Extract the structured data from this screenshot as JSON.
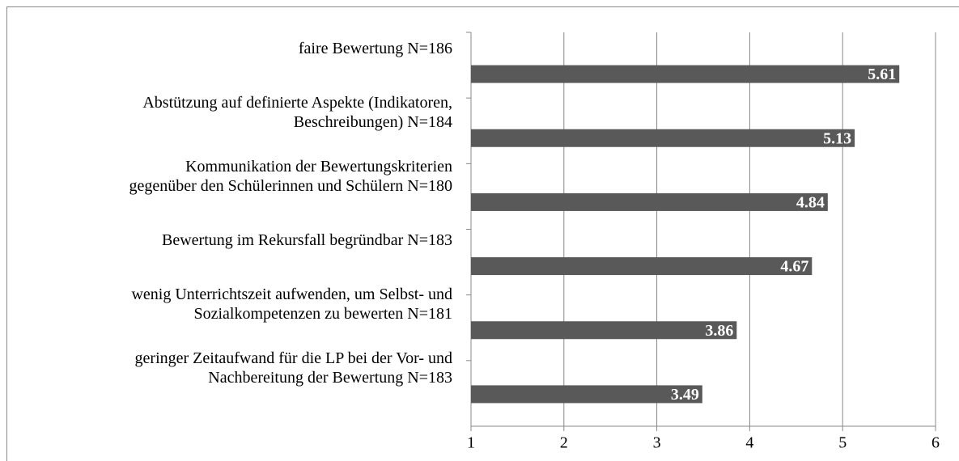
{
  "chart_data": {
    "type": "bar",
    "orientation": "horizontal",
    "categories": [
      "faire Bewertung N=186",
      "Abstützung auf definierte Aspekte (Indikatoren,\nBeschreibungen) N=184",
      "Kommunikation der Bewertungskriterien\ngegenüber den Schülerinnen und Schülern N=180",
      "Bewertung im Rekursfall begründbar N=183",
      "wenig Unterrichtszeit aufwenden, um Selbst- und\nSozialkompetenzen zu bewerten N=181",
      "geringer Zeitaufwand für die LP bei der Vor- und\nNachbereitung der Bewertung N=183"
    ],
    "values": [
      5.61,
      5.13,
      4.84,
      4.67,
      3.86,
      3.49
    ],
    "color": "#595959",
    "xlim": [
      1,
      6
    ],
    "xticks": [
      1,
      2,
      3,
      4,
      5,
      6
    ],
    "grid": true
  }
}
